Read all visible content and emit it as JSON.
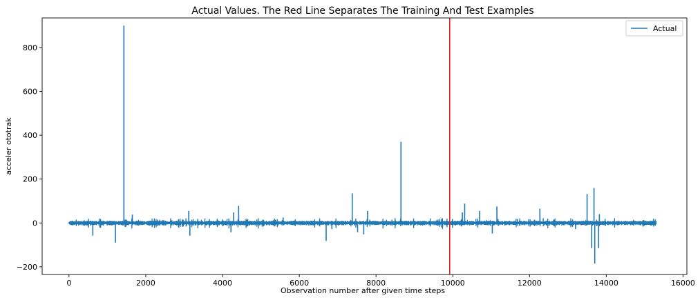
{
  "chart_data": {
    "type": "line",
    "title": "Actual Values. The Red Line Separates The Training And Test Examples",
    "xlabel": "Observation number after given time steps",
    "ylabel": "acceler ototrak",
    "xlim": [
      -700,
      16100
    ],
    "ylim": [
      -235,
      935
    ],
    "xticks": [
      0,
      2000,
      4000,
      6000,
      8000,
      10000,
      12000,
      14000,
      16000
    ],
    "yticks": [
      -200,
      0,
      200,
      400,
      600,
      800
    ],
    "legend": "top-right",
    "grid": false,
    "split_x": 9920,
    "split_color": "#e8231f",
    "series": [
      {
        "name": "Actual",
        "color": "#1f77b4",
        "n_points": 15300,
        "spikes": [
          {
            "x": 620,
            "y": -58
          },
          {
            "x": 1210,
            "y": -90
          },
          {
            "x": 1430,
            "y": 900
          },
          {
            "x": 1650,
            "y": 38
          },
          {
            "x": 3120,
            "y": 55
          },
          {
            "x": 3150,
            "y": -58
          },
          {
            "x": 4220,
            "y": -42
          },
          {
            "x": 4290,
            "y": 48
          },
          {
            "x": 4420,
            "y": 78
          },
          {
            "x": 5580,
            "y": 25
          },
          {
            "x": 6700,
            "y": -82
          },
          {
            "x": 6850,
            "y": -28
          },
          {
            "x": 7380,
            "y": 135
          },
          {
            "x": 7520,
            "y": -42
          },
          {
            "x": 7680,
            "y": -52
          },
          {
            "x": 7780,
            "y": 55
          },
          {
            "x": 8650,
            "y": 370
          },
          {
            "x": 10250,
            "y": 48
          },
          {
            "x": 10310,
            "y": 88
          },
          {
            "x": 10700,
            "y": 55
          },
          {
            "x": 11030,
            "y": -48
          },
          {
            "x": 11150,
            "y": 75
          },
          {
            "x": 12270,
            "y": 65
          },
          {
            "x": 13200,
            "y": -28
          },
          {
            "x": 13500,
            "y": 132
          },
          {
            "x": 13620,
            "y": -115
          },
          {
            "x": 13680,
            "y": 160
          },
          {
            "x": 13700,
            "y": -185
          },
          {
            "x": 13800,
            "y": -115
          },
          {
            "x": 13820,
            "y": 40
          }
        ]
      }
    ]
  }
}
